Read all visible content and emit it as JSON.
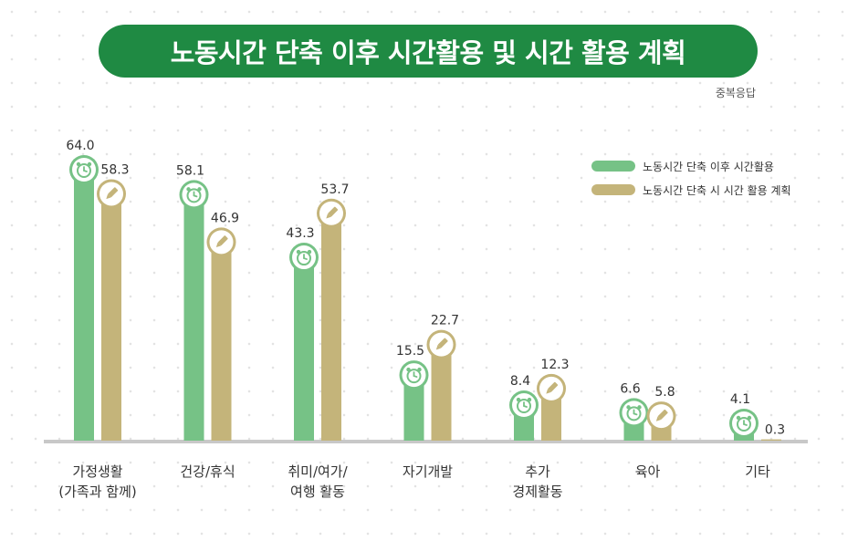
{
  "title": "노동시간 단축 이후 시간활용 및 시간 활용 계획",
  "note": "중복응답",
  "colors": {
    "title_bg": "#1f8a43",
    "after": "#76c286",
    "plan": "#c4b47a",
    "baseline": "#c8c8c8"
  },
  "chart_data": {
    "type": "bar",
    "categories": [
      [
        "가정생활",
        "(가족과 함께)"
      ],
      [
        "건강/휴식"
      ],
      [
        "취미/여가/",
        "여행 활동"
      ],
      [
        "자기개발"
      ],
      [
        "추가",
        "경제활동"
      ],
      [
        "육아"
      ],
      [
        "기타"
      ]
    ],
    "series": [
      {
        "name": "노동시간 단축 이후 시간활용",
        "values": [
          64.0,
          58.1,
          43.3,
          15.5,
          8.4,
          6.6,
          4.1
        ],
        "icon": "alarm-clock-icon"
      },
      {
        "name": "노동시간 단축 시 시간 활용 계획",
        "values": [
          58.3,
          46.9,
          53.7,
          22.7,
          12.3,
          5.8,
          0.3
        ],
        "icon": "pencil-icon"
      }
    ],
    "ylim": [
      0,
      70
    ],
    "grid": false,
    "legend_position": "top-right"
  }
}
